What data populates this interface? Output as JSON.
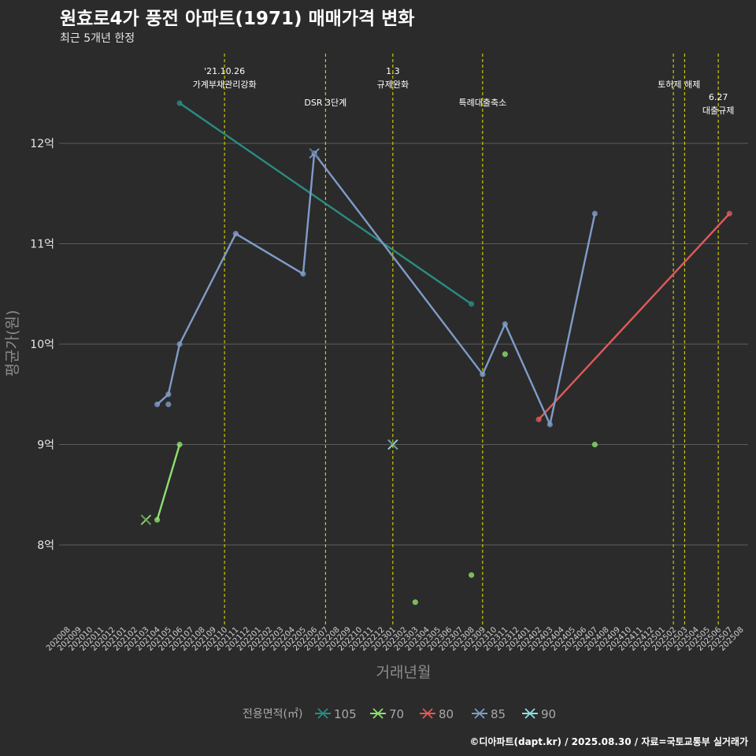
{
  "title": "원효로4가 풍전 아파트(1971) 매매가격 변화",
  "subtitle": "최근 5개년 한정",
  "credit": "©디아파트(dapt.kr) / 2025.08.30 / 자료=국토교통부 실거래가",
  "colors": {
    "background": "#2b2b2b",
    "grid": "#5c5c5c",
    "event_line": "#e6e600",
    "text": "#ffffff",
    "axis_title": "#8c8c8c",
    "series": {
      "105": "#2a8c82",
      "70": "#8ee06e",
      "80": "#e05a5a",
      "85": "#7f9cc8",
      "90": "#8ee0e0"
    }
  },
  "chart_data": {
    "type": "line",
    "title": "원효로4가 풍전 아파트(1971) 매매가격 변화",
    "subtitle": "최근 5개년 한정",
    "xlabel": "거래년월",
    "ylabel": "평균가(원)",
    "x_start": "202008",
    "x_end": "202508",
    "ylim": [
      7.2,
      12.9
    ],
    "y_ticks": [
      {
        "value": 8,
        "label": "8억"
      },
      {
        "value": 9,
        "label": "9억"
      },
      {
        "value": 10,
        "label": "10억"
      },
      {
        "value": 11,
        "label": "11억"
      },
      {
        "value": 12,
        "label": "12억"
      }
    ],
    "legend_title": "전용면적(㎡)",
    "legend_position": "bottom",
    "series": [
      {
        "name": "105",
        "line": [
          [
            "202106",
            12.4
          ],
          [
            "202308",
            10.4
          ]
        ],
        "points": [
          [
            "202106",
            12.4
          ],
          [
            "202308",
            10.4
          ]
        ],
        "crosses": []
      },
      {
        "name": "70",
        "line": [
          [
            "202104",
            8.25
          ],
          [
            "202106",
            9.0
          ]
        ],
        "points": [
          [
            "202104",
            8.25
          ],
          [
            "202106",
            9.0
          ],
          [
            "202303",
            7.43
          ],
          [
            "202308",
            7.7
          ],
          [
            "202311",
            9.9
          ],
          [
            "202407",
            9.0
          ]
        ],
        "crosses": [
          [
            "202103",
            8.25
          ]
        ]
      },
      {
        "name": "80",
        "line": [
          [
            "202402",
            9.25
          ],
          [
            "202507",
            11.3
          ]
        ],
        "points": [
          [
            "202402",
            9.25
          ],
          [
            "202507",
            11.3
          ]
        ],
        "crosses": []
      },
      {
        "name": "85",
        "line": [
          [
            "202104",
            9.4
          ],
          [
            "202105",
            9.5
          ],
          [
            "202106",
            10.0
          ],
          [
            "202111",
            11.1
          ],
          [
            "202205",
            10.7
          ],
          [
            "202206",
            11.9
          ],
          [
            "202309",
            9.7
          ],
          [
            "202311",
            10.2
          ],
          [
            "202403",
            9.2
          ],
          [
            "202407",
            11.3
          ]
        ],
        "points": [
          [
            "202104",
            9.4
          ],
          [
            "202105",
            9.5
          ],
          [
            "202105",
            9.4
          ],
          [
            "202106",
            10.0
          ],
          [
            "202111",
            11.1
          ],
          [
            "202205",
            10.7
          ],
          [
            "202206",
            11.9
          ],
          [
            "202309",
            9.7
          ],
          [
            "202311",
            10.2
          ],
          [
            "202403",
            9.2
          ],
          [
            "202407",
            11.3
          ]
        ],
        "crosses": [
          [
            "202206",
            11.9
          ]
        ]
      },
      {
        "name": "90",
        "line": [],
        "points": [],
        "crosses": [
          [
            "202301",
            9.0
          ]
        ]
      }
    ],
    "events": [
      {
        "month": "202110",
        "lines": [
          "'21.10.26",
          "가계부채관리강화"
        ],
        "row": 0
      },
      {
        "month": "202207",
        "lines": [
          "DSR 3단계"
        ],
        "row": 2
      },
      {
        "month": "202301",
        "lines": [
          "1.3",
          "규제완화"
        ],
        "row": 0
      },
      {
        "month": "202309",
        "lines": [
          "특례대출축소"
        ],
        "row": 2
      },
      {
        "month": "202502",
        "lines": [
          "토허제 해제"
        ],
        "row": 1,
        "anchor_month": "202503"
      },
      {
        "month": "202503",
        "lines": [],
        "row": 1
      },
      {
        "month": "202506",
        "lines": [
          "6.27",
          "대출규제"
        ],
        "row": 3
      }
    ]
  }
}
